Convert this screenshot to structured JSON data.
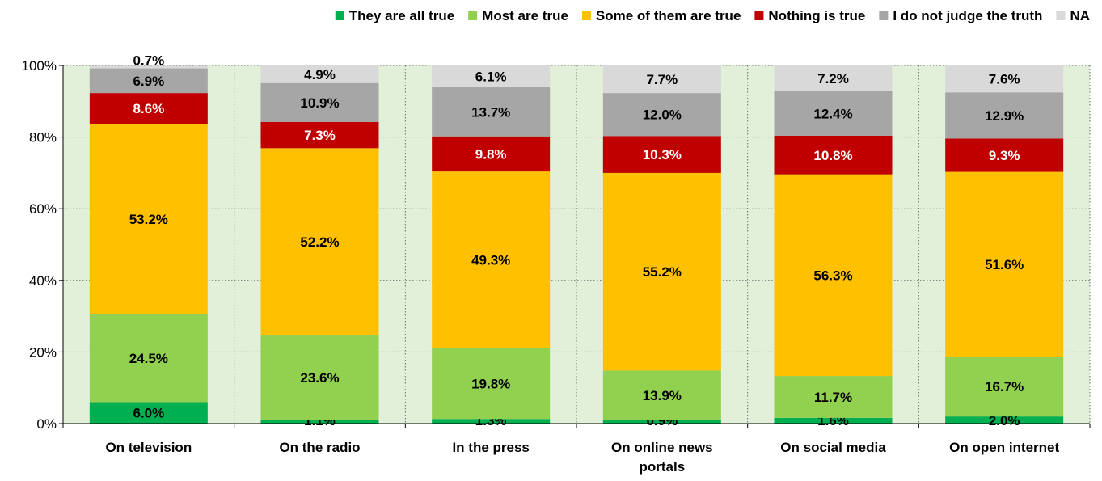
{
  "chart_data": {
    "type": "bar",
    "stacked": true,
    "categories": [
      "On television",
      "On the radio",
      "In the press",
      "On online news portals",
      "On social media",
      "On open internet"
    ],
    "series": [
      {
        "name": "They are all true",
        "color": "#00b050",
        "values": [
          6.0,
          1.1,
          1.3,
          0.9,
          1.6,
          2.0
        ],
        "label_color": "#000000"
      },
      {
        "name": "Most are true",
        "color": "#92d050",
        "values": [
          24.5,
          23.6,
          19.8,
          13.9,
          11.7,
          16.7
        ],
        "label_color": "#000000"
      },
      {
        "name": "Some of them are true",
        "color": "#ffc000",
        "values": [
          53.2,
          52.2,
          49.3,
          55.2,
          56.3,
          51.6
        ],
        "label_color": "#000000"
      },
      {
        "name": "Nothing is true",
        "color": "#c00000",
        "values": [
          8.6,
          7.3,
          9.8,
          10.3,
          10.8,
          9.3
        ],
        "label_color": "#ffffff"
      },
      {
        "name": "I do not judge the truth",
        "color": "#a6a6a6",
        "values": [
          6.9,
          10.9,
          13.7,
          12.0,
          12.4,
          12.9
        ],
        "label_color": "#000000"
      },
      {
        "name": "NA",
        "color": "#d9d9d9",
        "values": [
          0.7,
          4.9,
          6.1,
          7.7,
          7.2,
          7.6
        ],
        "label_color": "#000000"
      }
    ],
    "value_labels": [
      [
        "6.0%",
        "1.1%",
        "1.3%",
        "0.9%",
        "1.6%",
        "2.0%"
      ],
      [
        "24.5%",
        "23.6%",
        "19.8%",
        "13.9%",
        "11.7%",
        "16.7%"
      ],
      [
        "53.2%",
        "52.2%",
        "49.3%",
        "55.2%",
        "56.3%",
        "51.6%"
      ],
      [
        "8.6%",
        "7.3%",
        "9.8%",
        "10.3%",
        "10.8%",
        "9.3%"
      ],
      [
        "6.9%",
        "10.9%",
        "13.7%",
        "12.0%",
        "12.4%",
        "12.9%"
      ],
      [
        "0.7%",
        "4.9%",
        "6.1%",
        "7.7%",
        "7.2%",
        "7.6%"
      ]
    ],
    "yticks": [
      "0%",
      "20%",
      "40%",
      "60%",
      "80%",
      "100%"
    ],
    "ylim": [
      0,
      100
    ],
    "grid": true,
    "legend_position": "top",
    "plot_background": "#e2efd9"
  }
}
